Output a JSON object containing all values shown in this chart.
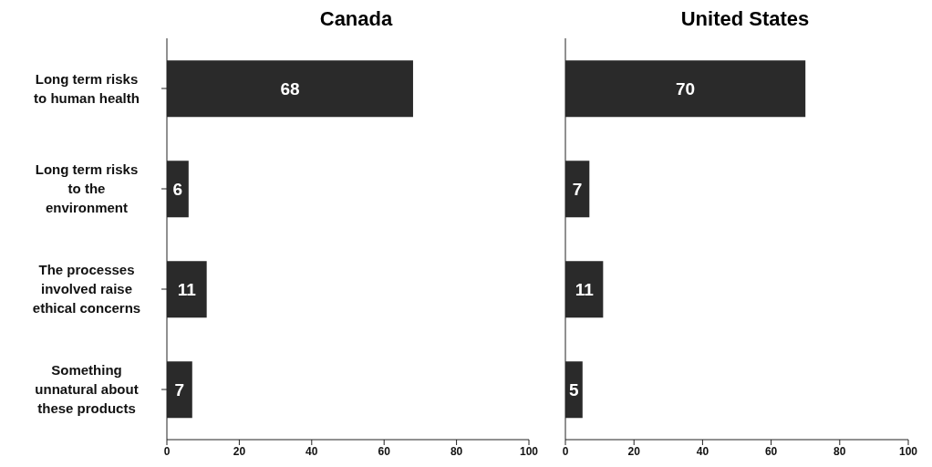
{
  "chart_data": [
    {
      "type": "bar",
      "orientation": "horizontal",
      "title": "Canada",
      "categories": [
        "Long term risks to human health",
        "Long term risks to the environment",
        "The processes involved raise ethical concerns",
        "Something unnatural about these products"
      ],
      "values": [
        68,
        6,
        11,
        7
      ],
      "color": "#2a2a2a",
      "xlim": [
        0,
        100
      ],
      "xticks": [
        0,
        20,
        40,
        60,
        80,
        100
      ],
      "data_labels": true,
      "grid": false
    },
    {
      "type": "bar",
      "orientation": "horizontal",
      "title": "United States",
      "categories": [
        null,
        null,
        null,
        null
      ],
      "values": [
        70,
        7,
        11,
        5
      ],
      "color": "#2a2a2a",
      "xlim": [
        0,
        100
      ],
      "xticks": [
        0,
        20,
        40,
        60,
        80,
        100
      ],
      "data_labels": true,
      "grid": false,
      "tick_labels": "x"
    }
  ]
}
